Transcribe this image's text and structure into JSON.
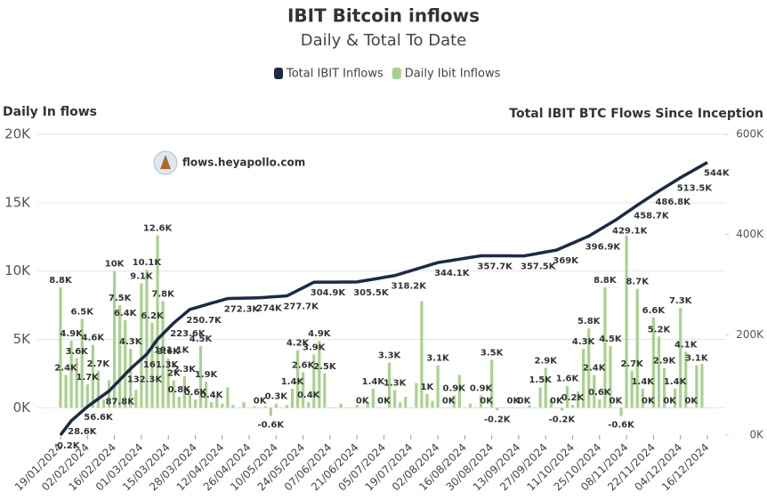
{
  "chart_data": {
    "type": "combo",
    "title": "IBIT Bitcoin inflows",
    "subtitle": "Daily & Total To Date",
    "y_label": "Daily In flows",
    "y2_label": "Total IBIT BTC Flows Since Inception",
    "watermark": "flows.heyapollo.com",
    "grid": true,
    "legend": "top",
    "categories": [
      "19/01/2024",
      null,
      null,
      null,
      null,
      "02/02/2024",
      null,
      null,
      null,
      null,
      "16/02/2024",
      null,
      null,
      null,
      null,
      "01/03/2024",
      null,
      null,
      null,
      null,
      "15/03/2024",
      null,
      null,
      null,
      null,
      "28/03/2024",
      null,
      null,
      null,
      null,
      "12/04/2024",
      null,
      null,
      null,
      null,
      "26/04/2024",
      null,
      null,
      null,
      null,
      "10/05/2024",
      null,
      null,
      null,
      null,
      "24/05/2024",
      null,
      null,
      null,
      null,
      "07/06/2024",
      null,
      null,
      null,
      null,
      "21/06/2024",
      null,
      null,
      null,
      null,
      "05/07/2024",
      null,
      null,
      null,
      null,
      "19/07/2024",
      null,
      null,
      null,
      null,
      "02/08/2024",
      null,
      null,
      null,
      null,
      "16/08/2024",
      null,
      null,
      null,
      null,
      "30/08/2024",
      null,
      null,
      null,
      null,
      "13/09/2024",
      null,
      null,
      null,
      null,
      "27/09/2024",
      null,
      null,
      null,
      null,
      "11/10/2024",
      null,
      null,
      null,
      null,
      "25/10/2024",
      null,
      null,
      null,
      null,
      "08/11/2024",
      null,
      null,
      null,
      null,
      "22/11/2024",
      null,
      null,
      null,
      null,
      "04/12/2024",
      null,
      null,
      null,
      null,
      "16/12/2024"
    ],
    "ylim": [
      -2000,
      20000
    ],
    "yticks": [
      {
        "value": 0,
        "label": "0K"
      },
      {
        "value": 5000,
        "label": "5K"
      },
      {
        "value": 10000,
        "label": "10K"
      },
      {
        "value": 15000,
        "label": "15K"
      },
      {
        "value": 20000,
        "label": "20K"
      }
    ],
    "y2lim": [
      0,
      600000
    ],
    "y2ticks": [
      {
        "value": 0,
        "label": "0K"
      },
      {
        "value": 200000,
        "label": "200K"
      },
      {
        "value": 400000,
        "label": "400K"
      },
      {
        "value": 600000,
        "label": "600K"
      }
    ],
    "series": [
      {
        "name": "Total IBIT Inflows",
        "type": "line",
        "axis": "y2",
        "color": "#1b2a47",
        "values": [
          200,
          14400,
          28600,
          37900,
          47300,
          56600,
          64400,
          72200,
          80000,
          87800,
          98900,
          110000,
          121200,
          132300,
          142000,
          151600,
          161300,
          176200,
          191100,
          201900,
          212800,
          223600,
          232600,
          241700,
          250700,
          253800,
          256900,
          260000,
          263200,
          266100,
          269200,
          272300,
          272600,
          272900,
          273200,
          273400,
          273700,
          274000,
          274700,
          275500,
          276200,
          277000,
          277700,
          283100,
          288600,
          294000,
          299500,
          304900,
          305000,
          305100,
          305200,
          305200,
          305300,
          305300,
          305400,
          305500,
          307300,
          309100,
          310900,
          312700,
          314600,
          316400,
          318200,
          321400,
          324700,
          327900,
          331200,
          334400,
          337600,
          340900,
          344100,
          345800,
          347500,
          349200,
          350900,
          352600,
          354300,
          356000,
          357700,
          357700,
          357600,
          357600,
          357600,
          357600,
          357500,
          357500,
          357500,
          359400,
          361300,
          363200,
          365200,
          367100,
          369000,
          373700,
          378300,
          383000,
          387600,
          392300,
          396900,
          403300,
          409800,
          416200,
          422700,
          429100,
          436500,
          443900,
          451300,
          458700,
          465700,
          472800,
          479800,
          486800,
          493500,
          500100,
          506800,
          513500,
          519600,
          525700,
          531800,
          537900,
          544000
        ],
        "value_labels": [
          "0.2K",
          null,
          "28.6K",
          null,
          null,
          "56.6K",
          null,
          null,
          null,
          "87.8K",
          null,
          null,
          null,
          "132.3K",
          null,
          null,
          "161.3K",
          null,
          "191.1K",
          null,
          null,
          "223.6K",
          null,
          null,
          "250.7K",
          null,
          null,
          null,
          null,
          null,
          null,
          "272.3K",
          null,
          null,
          null,
          null,
          null,
          "274K",
          null,
          null,
          null,
          null,
          "277.7K",
          null,
          null,
          null,
          null,
          "304.9K",
          null,
          null,
          null,
          null,
          null,
          null,
          null,
          "305.5K",
          null,
          null,
          null,
          null,
          null,
          null,
          "318.2K",
          null,
          null,
          null,
          null,
          null,
          null,
          null,
          "344.1K",
          null,
          null,
          null,
          null,
          null,
          null,
          null,
          "357.7K",
          null,
          null,
          null,
          null,
          null,
          null,
          null,
          "357.5K",
          null,
          null,
          null,
          null,
          null,
          "369K",
          null,
          null,
          null,
          null,
          null,
          "396.9K",
          null,
          null,
          null,
          null,
          "429.1K",
          null,
          null,
          null,
          "458.7K",
          null,
          null,
          null,
          "486.8K",
          null,
          null,
          null,
          "513.5K",
          null,
          null,
          null,
          null,
          "544K"
        ]
      },
      {
        "name": "Daily Ibit Inflows",
        "type": "bar",
        "axis": "y",
        "color": "#a9d18e",
        "values": [
          8800,
          2400,
          4900,
          3600,
          6500,
          1700,
          4600,
          2700,
          600,
          2000,
          10000,
          7500,
          6400,
          4300,
          1300,
          9100,
          10100,
          6200,
          12600,
          7800,
          3600,
          2000,
          800,
          2300,
          1000,
          600,
          4500,
          1900,
          400,
          800,
          300,
          1500,
          200,
          0,
          400,
          0,
          100,
          0,
          100,
          -600,
          300,
          0,
          200,
          1400,
          4200,
          2600,
          400,
          3900,
          4900,
          2500,
          0,
          0,
          300,
          0,
          0,
          200,
          0,
          400,
          1400,
          0,
          0,
          3300,
          1300,
          400,
          800,
          0,
          1800,
          7800,
          1000,
          500,
          3100,
          0,
          0,
          900,
          2400,
          0,
          300,
          0,
          900,
          0,
          3500,
          -200,
          0,
          0,
          0,
          0,
          0,
          200,
          0,
          1500,
          2900,
          600,
          0,
          -200,
          1600,
          200,
          1200,
          4300,
          5800,
          2400,
          600,
          8800,
          4500,
          0,
          -600,
          12600,
          2700,
          8700,
          1400,
          0,
          6600,
          5200,
          2900,
          0,
          1400,
          7300,
          4100,
          0,
          3100,
          3200,
          0
        ],
        "value_labels": [
          "8.8K",
          "2.4K",
          "4.9K",
          "3.6K",
          "6.5K",
          "1.7K",
          "4.6K",
          "2.7K",
          null,
          null,
          "10K",
          "7.5K",
          "6.4K",
          "4.3K",
          null,
          "9.1K",
          "10.1K",
          "6.2K",
          "12.6K",
          "7.8K",
          "3.6K",
          "2K",
          "0.8K",
          "2.3K",
          null,
          "0.6K",
          "4.5K",
          "1.9K",
          "0.4K",
          null,
          null,
          null,
          null,
          null,
          null,
          null,
          null,
          "0K",
          null,
          "-0.6K",
          "0.3K",
          null,
          null,
          "1.4K",
          "4.2K",
          "2.6K",
          "0.4K",
          "3.9K",
          "4.9K",
          "2.5K",
          null,
          null,
          null,
          null,
          null,
          null,
          "0K",
          null,
          "1.4K",
          null,
          "0K",
          "3.3K",
          "1.3K",
          null,
          null,
          null,
          null,
          null,
          "1K",
          null,
          "3.1K",
          null,
          "0K",
          "0.9K",
          null,
          null,
          null,
          null,
          "0.9K",
          "0K",
          "3.5K",
          "-0.2K",
          null,
          null,
          "0K",
          null,
          "0K",
          null,
          null,
          "1.5K",
          "2.9K",
          null,
          "0K",
          "-0.2K",
          "1.6K",
          "0.2K",
          null,
          "4.3K",
          "5.8K",
          "2.4K",
          "0.6K",
          "8.8K",
          "4.5K",
          "0K",
          "-0.6K",
          null,
          "2.7K",
          "8.7K",
          "1.4K",
          "0K",
          "6.6K",
          "5.2K",
          "2.9K",
          "0K",
          "1.4K",
          "7.3K",
          "4.1K",
          "0K",
          "3.1K",
          null,
          null
        ]
      }
    ]
  }
}
